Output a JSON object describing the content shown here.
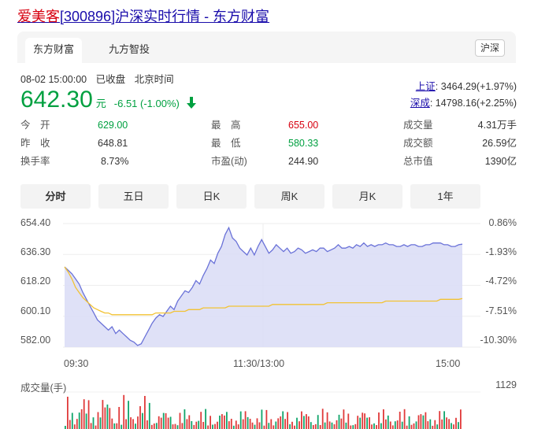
{
  "page": {
    "title_highlight": "爱美客",
    "title_rest": "[300896]沪深实时行情 - 东方财富"
  },
  "tabs": [
    {
      "label": "东方财富"
    },
    {
      "label": "九方智投"
    }
  ],
  "market_button": "沪深",
  "quote": {
    "datetime": "08-02 15:00:00",
    "status": "已收盘",
    "timezone": "北京时间",
    "price": "642.30",
    "unit": "元",
    "change": "-6.51 (-1.00%)"
  },
  "indices": [
    {
      "name": "上证",
      "value": ": 3464.29(+1.97%)"
    },
    {
      "name": "深成",
      "value": ": 14798.16(+2.25%)"
    }
  ],
  "stats": [
    {
      "label": "今　开",
      "value": "629.00",
      "color": "#00a040"
    },
    {
      "label": "最　高",
      "value": "655.00",
      "color": "#d7000f"
    },
    {
      "label": "成交量",
      "value": "4.31万手",
      "color": "#333333"
    },
    {
      "label": "昨　收",
      "value": "648.81",
      "color": "#333333"
    },
    {
      "label": "最　低",
      "value": "580.33",
      "color": "#00a040"
    },
    {
      "label": "成交额",
      "value": "26.59亿",
      "color": "#333333"
    },
    {
      "label": "换手率",
      "value": "8.73%",
      "color": "#333333"
    },
    {
      "label": "市盈(动)",
      "value": "244.90",
      "color": "#333333"
    },
    {
      "label": "总市值",
      "value": "1390亿",
      "color": "#333333"
    }
  ],
  "periods": [
    {
      "label": "分时"
    },
    {
      "label": "五日"
    },
    {
      "label": "日K"
    },
    {
      "label": "周K"
    },
    {
      "label": "月K"
    },
    {
      "label": "1年"
    }
  ],
  "chart_data": {
    "type": "line",
    "y_left_ticks": [
      "654.40",
      "636.30",
      "618.20",
      "600.10",
      "582.00"
    ],
    "y_right_ticks": [
      "0.86%",
      "-1.93%",
      "-4.72%",
      "-7.51%",
      "-10.30%"
    ],
    "x_ticks": [
      "09:30",
      "11:30/13:00",
      "15:00"
    ],
    "ylim": [
      582.0,
      654.4
    ],
    "volume_label": "成交量(手)",
    "volume_max": "1129",
    "colors": {
      "price": "#6a72d8",
      "price_fill": "#d9dcf6",
      "avg": "#f2c233",
      "vol_up": "#e03a3a",
      "vol_down": "#11a56b"
    },
    "series": [
      {
        "values": [
          629,
          627,
          625,
          622,
          619,
          614,
          610,
          606,
          602,
          598,
          596,
          594,
          592,
          594,
          590,
          592,
          590,
          588,
          586,
          585,
          583,
          584,
          588,
          592,
          596,
          599,
          601,
          600,
          603,
          606,
          604,
          609,
          612,
          615,
          614,
          617,
          621,
          619,
          624,
          628,
          633,
          631,
          637,
          641,
          648,
          652,
          646,
          644,
          640,
          638,
          636,
          640,
          636,
          641,
          645,
          641,
          637,
          639,
          642,
          640,
          638,
          640,
          637,
          638,
          640,
          639,
          637,
          638,
          639,
          638,
          640,
          640,
          638,
          639,
          640,
          642,
          640,
          640,
          641,
          640,
          642,
          641,
          643,
          641,
          642,
          641,
          642,
          642,
          643,
          642,
          642,
          641,
          641,
          642,
          641,
          642,
          642,
          641,
          641,
          642,
          642,
          643,
          643,
          643,
          642,
          642,
          641,
          641,
          642,
          642.3
        ]
      },
      {
        "values": [
          629,
          626,
          622,
          617,
          614,
          611,
          609,
          607,
          605,
          604,
          603,
          602,
          602,
          601,
          601,
          601,
          601,
          601,
          601,
          601,
          601,
          601,
          601,
          601,
          601,
          602,
          602,
          602,
          602,
          602,
          603,
          603,
          603,
          603,
          604,
          604,
          604,
          604,
          605,
          605,
          605,
          605,
          605,
          605,
          605,
          606,
          606,
          606,
          606,
          606,
          606,
          606,
          606,
          606,
          606,
          606,
          606,
          607,
          607,
          607,
          607,
          607,
          607,
          607,
          607,
          607,
          607,
          607,
          607,
          607,
          607,
          607,
          608,
          608,
          608,
          608,
          608,
          608,
          608,
          608,
          608,
          608,
          608,
          608,
          608,
          608,
          608,
          608,
          609,
          609,
          609,
          609,
          609,
          609,
          609,
          609,
          609,
          609,
          609,
          609,
          609,
          609,
          609,
          610,
          610,
          610,
          610,
          610,
          610,
          610.5
        ]
      }
    ]
  }
}
